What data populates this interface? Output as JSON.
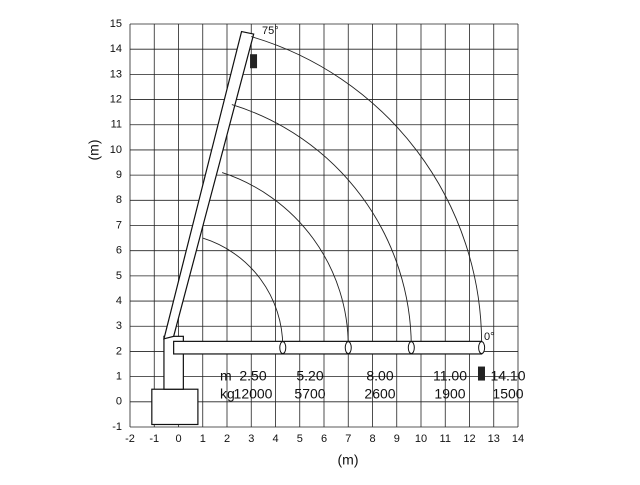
{
  "axes": {
    "xlabel": "(m)",
    "ylabel": "(m)",
    "xlim": [
      -2,
      14
    ],
    "ylim": [
      -1,
      15
    ],
    "xticks": [
      -2,
      -1,
      0,
      1,
      2,
      3,
      4,
      5,
      6,
      7,
      8,
      9,
      10,
      11,
      12,
      13,
      14
    ],
    "yticks": [
      -1,
      0,
      1,
      2,
      3,
      4,
      5,
      6,
      7,
      8,
      9,
      10,
      11,
      12,
      13,
      14,
      15
    ]
  },
  "angles": {
    "top": "75°",
    "bottom": "0°"
  },
  "table": {
    "rows": [
      [
        "m",
        "2.50",
        "5.20",
        "8.00",
        "11.00",
        "14.10"
      ],
      [
        "kg",
        "12000",
        "5700",
        "2600",
        "1900",
        "1500"
      ]
    ]
  }
}
